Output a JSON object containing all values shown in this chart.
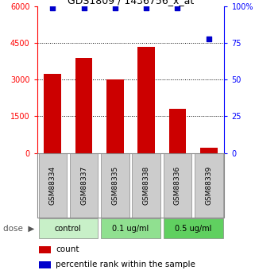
{
  "title": "GDS1809 / 1436756_x_at",
  "samples": [
    "GSM88334",
    "GSM88337",
    "GSM88335",
    "GSM88338",
    "GSM88336",
    "GSM88339"
  ],
  "counts": [
    3250,
    3900,
    3000,
    4350,
    1800,
    200
  ],
  "percentiles": [
    99,
    99,
    99,
    99,
    99,
    78
  ],
  "bar_color": "#cc0000",
  "dot_color": "#0000cc",
  "left_yticks": [
    0,
    1500,
    3000,
    4500,
    6000
  ],
  "right_yticks": [
    0,
    25,
    50,
    75,
    100
  ],
  "ylim_left": [
    0,
    6000
  ],
  "ylim_right": [
    0,
    100
  ],
  "legend_count": "count",
  "legend_percentile": "percentile rank within the sample",
  "bg_color_labels": "#cccccc",
  "group_colors": [
    "#c8f0c8",
    "#90e090",
    "#60d060"
  ],
  "group_defs": [
    {
      "start": 0,
      "end": 1,
      "label": "control"
    },
    {
      "start": 2,
      "end": 3,
      "label": "0.1 ug/ml"
    },
    {
      "start": 4,
      "end": 5,
      "label": "0.5 ug/ml"
    }
  ],
  "grid_yticks": [
    1500,
    3000,
    4500
  ]
}
